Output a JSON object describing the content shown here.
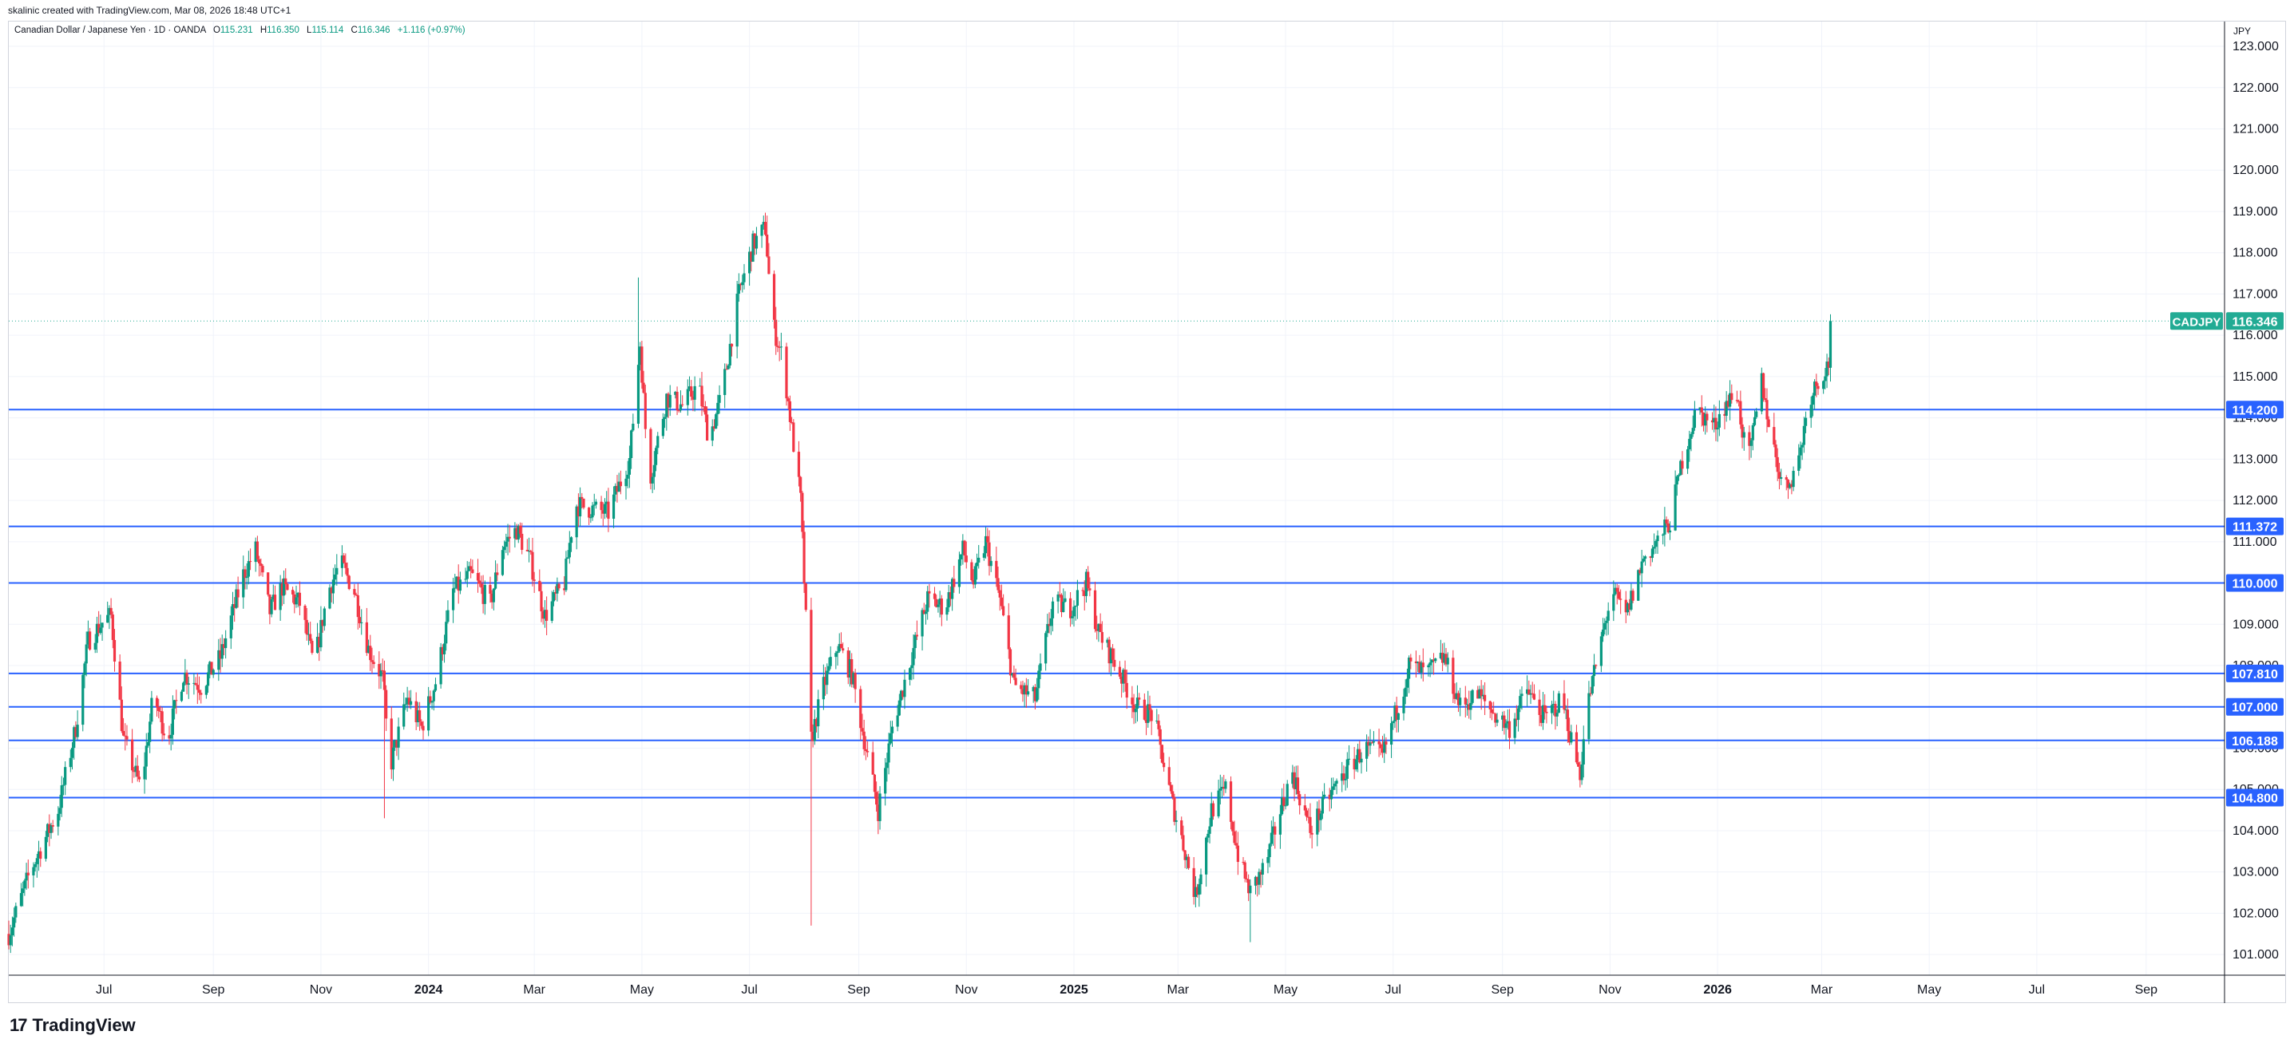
{
  "header": {
    "credit": "skalinic created with TradingView.com, Mar 08, 2026 18:48 UTC+1"
  },
  "legend": {
    "instrument": "Canadian Dollar / Japanese Yen · 1D · OANDA",
    "open_label": "O",
    "open": "115.231",
    "high_label": "H",
    "high": "116.350",
    "low_label": "L",
    "low": "115.114",
    "close_label": "C",
    "close": "116.346",
    "change": "+1.116 (+0.97%)"
  },
  "footer": {
    "brand": "TradingView",
    "logo_mark": "17"
  },
  "colors": {
    "up": "#089981",
    "down": "#f23645",
    "level_line": "#2962ff",
    "grid": "#f0f3fa",
    "last_price_badge": "#22ab94"
  },
  "chart_data": {
    "type": "candlestick",
    "symbol": "CADJPY",
    "unit": "JPY",
    "ylim": [
      100.5,
      123.6
    ],
    "y_ticks": [
      "101.000",
      "102.000",
      "103.000",
      "104.000",
      "105.000",
      "106.000",
      "107.000",
      "108.000",
      "109.000",
      "110.000",
      "111.000",
      "112.000",
      "113.000",
      "114.000",
      "115.000",
      "116.000",
      "117.000",
      "118.000",
      "119.000",
      "120.000",
      "121.000",
      "122.000",
      "123.000"
    ],
    "x_ticks": [
      {
        "label": "Jul",
        "date": "2023-07-01",
        "bold": false
      },
      {
        "label": "Sep",
        "date": "2023-09-01",
        "bold": false
      },
      {
        "label": "Nov",
        "date": "2023-11-01",
        "bold": false
      },
      {
        "label": "2024",
        "date": "2024-01-01",
        "bold": true
      },
      {
        "label": "Mar",
        "date": "2024-03-01",
        "bold": false
      },
      {
        "label": "May",
        "date": "2024-05-01",
        "bold": false
      },
      {
        "label": "Jul",
        "date": "2024-07-01",
        "bold": false
      },
      {
        "label": "Sep",
        "date": "2024-09-01",
        "bold": false
      },
      {
        "label": "Nov",
        "date": "2024-11-01",
        "bold": false
      },
      {
        "label": "2025",
        "date": "2025-01-01",
        "bold": true
      },
      {
        "label": "Mar",
        "date": "2025-03-01",
        "bold": false
      },
      {
        "label": "May",
        "date": "2025-05-01",
        "bold": false
      },
      {
        "label": "Jul",
        "date": "2025-07-01",
        "bold": false
      },
      {
        "label": "Sep",
        "date": "2025-09-01",
        "bold": false
      },
      {
        "label": "Nov",
        "date": "2025-11-01",
        "bold": false
      },
      {
        "label": "2026",
        "date": "2026-01-01",
        "bold": true
      },
      {
        "label": "Mar",
        "date": "2026-03-01",
        "bold": false
      },
      {
        "label": "May",
        "date": "2026-05-01",
        "bold": false
      },
      {
        "label": "Jul",
        "date": "2026-07-01",
        "bold": false
      },
      {
        "label": "Sep",
        "date": "2026-09-01",
        "bold": false
      }
    ],
    "x_range": [
      "2023-05-08",
      "2026-10-15"
    ],
    "horizontal_levels": [
      114.2,
      111.372,
      110.0,
      107.81,
      107.0,
      106.188,
      104.8
    ],
    "horizontal_level_labels": [
      "114.200",
      "111.372",
      "110.000",
      "107.810",
      "107.000",
      "106.188",
      "104.800"
    ],
    "last_price": {
      "label": "CADJPY",
      "value": 116.346,
      "value_text": "116.346"
    },
    "close_path": [
      [
        "2023-05-08",
        101.5
      ],
      [
        "2023-05-20",
        103.0
      ],
      [
        "2023-06-05",
        104.5
      ],
      [
        "2023-06-15",
        106.5
      ],
      [
        "2023-06-22",
        108.6
      ],
      [
        "2023-07-01",
        109.1
      ],
      [
        "2023-07-05",
        109.2
      ],
      [
        "2023-07-12",
        106.2
      ],
      [
        "2023-07-22",
        105.0
      ],
      [
        "2023-07-29",
        107.3
      ],
      [
        "2023-08-06",
        106.2
      ],
      [
        "2023-08-15",
        107.8
      ],
      [
        "2023-08-25",
        107.5
      ],
      [
        "2023-09-05",
        108.2
      ],
      [
        "2023-09-18",
        110.2
      ],
      [
        "2023-09-25",
        110.8
      ],
      [
        "2023-10-03",
        109.3
      ],
      [
        "2023-10-10",
        109.9
      ],
      [
        "2023-10-20",
        109.5
      ],
      [
        "2023-10-28",
        108.0
      ],
      [
        "2023-11-05",
        109.8
      ],
      [
        "2023-11-12",
        110.5
      ],
      [
        "2023-11-20",
        109.8
      ],
      [
        "2023-11-28",
        108.4
      ],
      [
        "2023-12-06",
        107.7
      ],
      [
        "2023-12-10",
        105.5
      ],
      [
        "2023-12-20",
        107.2
      ],
      [
        "2023-12-28",
        106.5
      ],
      [
        "2024-01-05",
        107.6
      ],
      [
        "2024-01-15",
        109.8
      ],
      [
        "2024-01-25",
        110.2
      ],
      [
        "2024-02-05",
        109.5
      ],
      [
        "2024-02-12",
        110.9
      ],
      [
        "2024-02-20",
        111.3
      ],
      [
        "2024-02-28",
        110.5
      ],
      [
        "2024-03-07",
        109.2
      ],
      [
        "2024-03-18",
        110.0
      ],
      [
        "2024-03-24",
        111.9
      ],
      [
        "2024-04-02",
        111.8
      ],
      [
        "2024-04-12",
        111.7
      ],
      [
        "2024-04-24",
        113.0
      ],
      [
        "2024-04-30",
        115.8
      ],
      [
        "2024-05-05",
        112.4
      ],
      [
        "2024-05-15",
        114.5
      ],
      [
        "2024-05-24",
        114.3
      ],
      [
        "2024-06-02",
        114.8
      ],
      [
        "2024-06-08",
        113.5
      ],
      [
        "2024-06-15",
        114.5
      ],
      [
        "2024-06-25",
        117.0
      ],
      [
        "2024-07-03",
        118.2
      ],
      [
        "2024-07-10",
        118.6
      ],
      [
        "2024-07-14",
        116.3
      ],
      [
        "2024-07-20",
        115.4
      ],
      [
        "2024-07-30",
        112.0
      ],
      [
        "2024-08-05",
        106.2
      ],
      [
        "2024-08-12",
        107.5
      ],
      [
        "2024-08-20",
        108.5
      ],
      [
        "2024-08-28",
        107.8
      ],
      [
        "2024-09-05",
        106.0
      ],
      [
        "2024-09-12",
        104.5
      ],
      [
        "2024-09-20",
        106.5
      ],
      [
        "2024-09-30",
        108.1
      ],
      [
        "2024-10-10",
        109.6
      ],
      [
        "2024-10-20",
        109.4
      ],
      [
        "2024-10-30",
        110.8
      ],
      [
        "2024-11-05",
        110.0
      ],
      [
        "2024-11-12",
        111.0
      ],
      [
        "2024-11-20",
        109.6
      ],
      [
        "2024-11-28",
        107.5
      ],
      [
        "2024-12-10",
        107.2
      ],
      [
        "2024-12-20",
        109.5
      ],
      [
        "2024-12-30",
        109.4
      ],
      [
        "2025-01-08",
        110.0
      ],
      [
        "2025-01-15",
        108.8
      ],
      [
        "2025-01-25",
        108.0
      ],
      [
        "2025-02-05",
        107.0
      ],
      [
        "2025-02-15",
        106.8
      ],
      [
        "2025-02-25",
        104.8
      ],
      [
        "2025-03-05",
        103.5
      ],
      [
        "2025-03-11",
        102.4
      ],
      [
        "2025-03-20",
        104.5
      ],
      [
        "2025-03-28",
        105.0
      ],
      [
        "2025-04-05",
        103.2
      ],
      [
        "2025-04-11",
        102.5
      ],
      [
        "2025-04-20",
        103.2
      ],
      [
        "2025-04-28",
        104.5
      ],
      [
        "2025-05-05",
        105.4
      ],
      [
        "2025-05-15",
        104.0
      ],
      [
        "2025-05-25",
        104.8
      ],
      [
        "2025-06-05",
        105.5
      ],
      [
        "2025-06-15",
        106.0
      ],
      [
        "2025-06-25",
        105.8
      ],
      [
        "2025-07-05",
        107.2
      ],
      [
        "2025-07-10",
        108.0
      ],
      [
        "2025-07-20",
        107.8
      ],
      [
        "2025-07-30",
        108.2
      ],
      [
        "2025-08-08",
        107.0
      ],
      [
        "2025-08-18",
        107.3
      ],
      [
        "2025-08-28",
        106.8
      ],
      [
        "2025-09-05",
        106.5
      ],
      [
        "2025-09-15",
        107.4
      ],
      [
        "2025-09-25",
        106.7
      ],
      [
        "2025-10-05",
        107.2
      ],
      [
        "2025-10-11",
        106.0
      ],
      [
        "2025-10-15",
        105.4
      ],
      [
        "2025-10-19",
        107.0
      ],
      [
        "2025-10-25",
        108.2
      ],
      [
        "2025-11-02",
        109.8
      ],
      [
        "2025-11-10",
        109.2
      ],
      [
        "2025-11-20",
        110.6
      ],
      [
        "2025-11-28",
        111.0
      ],
      [
        "2025-12-05",
        111.5
      ],
      [
        "2025-12-12",
        113.0
      ],
      [
        "2025-12-20",
        114.2
      ],
      [
        "2025-12-30",
        113.8
      ],
      [
        "2026-01-05",
        114.3
      ],
      [
        "2026-01-12",
        114.6
      ],
      [
        "2026-01-18",
        112.8
      ],
      [
        "2026-01-26",
        114.9
      ],
      [
        "2026-02-01",
        113.4
      ],
      [
        "2026-02-08",
        112.2
      ],
      [
        "2026-02-16",
        113.0
      ],
      [
        "2026-02-22",
        114.5
      ],
      [
        "2026-02-28",
        115.0
      ],
      [
        "2026-03-05",
        115.3
      ],
      [
        "2026-03-06",
        116.346
      ]
    ],
    "extreme_wicks": [
      {
        "date": "2024-04-29",
        "high": 117.4
      },
      {
        "date": "2024-08-05",
        "low": 101.7
      },
      {
        "date": "2023-12-07",
        "low": 104.3
      },
      {
        "date": "2024-07-11",
        "high": 118.9
      },
      {
        "date": "2025-04-11",
        "low": 101.3
      }
    ],
    "grid": true
  }
}
